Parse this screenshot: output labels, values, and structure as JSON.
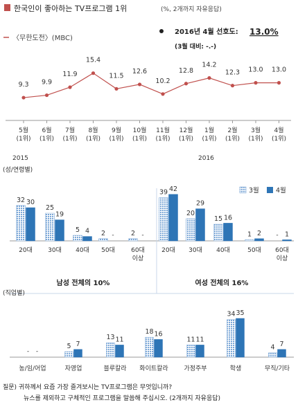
{
  "header": {
    "title": "한국인이 좋아하는 TV프로그램 1위",
    "subtitle": "(%, 2개까지 자유응답)"
  },
  "program": {
    "legend_label": "〈무한도전〉(MBC)",
    "latest_label": "2016년 4월 선호도:",
    "latest_value": "13.0%",
    "change_label": "(3월 대비: -.-)"
  },
  "colors": {
    "line": "#c0504d",
    "march": "#9dc3e6",
    "april": "#2e75b6",
    "axis": "#999999",
    "divider": "#c9d7ea"
  },
  "chart_data": [
    {
      "type": "line",
      "categories": [
        "5월\n(1위)",
        "6월\n(1위)",
        "7월\n(1위)",
        "8월\n(1위)",
        "9월\n(1위)",
        "10월\n(1위)",
        "11월\n(1위)",
        "12월\n(1위)",
        "1월\n(1위)",
        "2월\n(1위)",
        "3월\n(1위)",
        "4월\n(1위)"
      ],
      "values": [
        9.3,
        9.9,
        11.9,
        15.4,
        11.5,
        12.6,
        10.2,
        12.8,
        14.2,
        12.3,
        13.0,
        13.0
      ],
      "year_labels": [
        "2015",
        "2016"
      ]
    },
    {
      "type": "bar",
      "title": "(성/연령별)",
      "series": [
        {
          "name": "3월"
        },
        {
          "name": "4월"
        }
      ],
      "groups": [
        {
          "label": "남성 전체의 10%",
          "categories": [
            "20대",
            "30대",
            "40대",
            "50대",
            "60대\n이상"
          ],
          "march": [
            32,
            25,
            5,
            2,
            2
          ],
          "april": [
            30,
            19,
            4,
            null,
            null
          ]
        },
        {
          "label": "여성 전체의 16%",
          "categories": [
            "20대",
            "30대",
            "40대",
            "50대",
            "60대\n이상"
          ],
          "march": [
            39,
            20,
            15,
            1,
            null
          ],
          "april": [
            42,
            29,
            16,
            2,
            1
          ]
        }
      ]
    },
    {
      "type": "bar",
      "title": "(직업별)",
      "categories": [
        "농/임/어업",
        "자영업",
        "블루칼라",
        "화이트칼라",
        "가정주부",
        "학생",
        "무직/기타"
      ],
      "march": [
        null,
        5,
        13,
        18,
        11,
        34,
        4
      ],
      "april": [
        null,
        7,
        11,
        16,
        11,
        35,
        7
      ]
    }
  ],
  "footer": {
    "line1": "질문) 귀하께서 요즘 가장 즐겨보시는 TV프로그램은 무엇입니까?",
    "line2": "뉴스를 제외하고 구체적인 프로그램을 말씀해 주십시오. (2개까지 자유응답)"
  }
}
